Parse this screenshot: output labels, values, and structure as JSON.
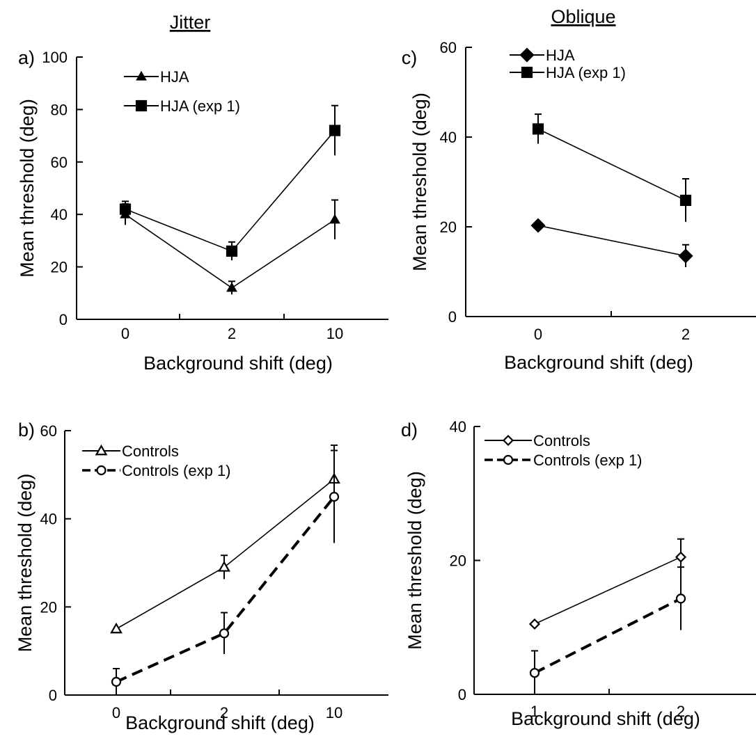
{
  "column_titles": {
    "left": "Jitter",
    "right": "Oblique"
  },
  "chart_data": [
    {
      "panel": "a)",
      "type": "line",
      "xlabel": "Background shift (deg)",
      "ylabel": "Mean threshold (deg)",
      "x_categories": [
        "0",
        "2",
        "10"
      ],
      "ylim": [
        0,
        100
      ],
      "yticks": [
        "0",
        "20",
        "40",
        "60",
        "80",
        "100"
      ],
      "grid": false,
      "legend_position": "top-left",
      "series": [
        {
          "name": "HJA",
          "marker": "triangle-filled",
          "dash": "solid",
          "values": [
            40,
            12,
            38
          ],
          "errors": [
            4,
            2.5,
            7.5
          ]
        },
        {
          "name": "HJA (exp 1)",
          "marker": "square-filled",
          "dash": "solid",
          "values": [
            42,
            26,
            72
          ],
          "errors": [
            3,
            3.5,
            9.5
          ]
        }
      ]
    },
    {
      "panel": "b)",
      "type": "line",
      "xlabel": "Background shift (deg)",
      "ylabel": "Mean threshold (deg)",
      "x_categories": [
        "0",
        "2",
        "10"
      ],
      "ylim": [
        0,
        60
      ],
      "yticks": [
        "0",
        "20",
        "40",
        "60"
      ],
      "grid": false,
      "legend_position": "top-left",
      "series": [
        {
          "name": "Controls",
          "marker": "triangle-open",
          "dash": "solid",
          "values": [
            15,
            29,
            49
          ],
          "errors": [
            0,
            2.7,
            7.7
          ]
        },
        {
          "name": "Controls (exp 1)",
          "marker": "circle-open",
          "dash": "dashed",
          "values": [
            3,
            14,
            45
          ],
          "errors": [
            3,
            4.7,
            10.5
          ]
        }
      ]
    },
    {
      "panel": "c)",
      "type": "line",
      "xlabel": "Background shift (deg)",
      "ylabel": "Mean threshold (deg)",
      "x_categories": [
        "0",
        "2"
      ],
      "ylim": [
        0,
        60
      ],
      "yticks": [
        "0",
        "20",
        "40",
        "60"
      ],
      "grid": false,
      "legend_position": "top-left",
      "series": [
        {
          "name": "HJA",
          "marker": "diamond-filled",
          "dash": "solid",
          "values": [
            20.3,
            13.5
          ],
          "errors": [
            0,
            2.5
          ]
        },
        {
          "name": "HJA (exp 1)",
          "marker": "square-filled",
          "dash": "solid",
          "values": [
            41.8,
            25.9
          ],
          "errors": [
            3.3,
            4.8
          ]
        }
      ]
    },
    {
      "panel": "d)",
      "type": "line",
      "xlabel": "Background shift (deg)",
      "ylabel": "Mean threshold (deg)",
      "x_categories": [
        "1",
        "2"
      ],
      "ylim": [
        0,
        40
      ],
      "yticks": [
        "0",
        "20",
        "40"
      ],
      "grid": false,
      "legend_position": "top-left",
      "series": [
        {
          "name": "Controls",
          "marker": "diamond-open",
          "dash": "solid",
          "values": [
            10.5,
            20.5
          ],
          "errors": [
            0,
            2.7
          ]
        },
        {
          "name": "Controls (exp 1)",
          "marker": "circle-open",
          "dash": "dashed",
          "values": [
            3.2,
            14.3
          ],
          "errors": [
            3.3,
            4.7
          ]
        }
      ]
    }
  ]
}
